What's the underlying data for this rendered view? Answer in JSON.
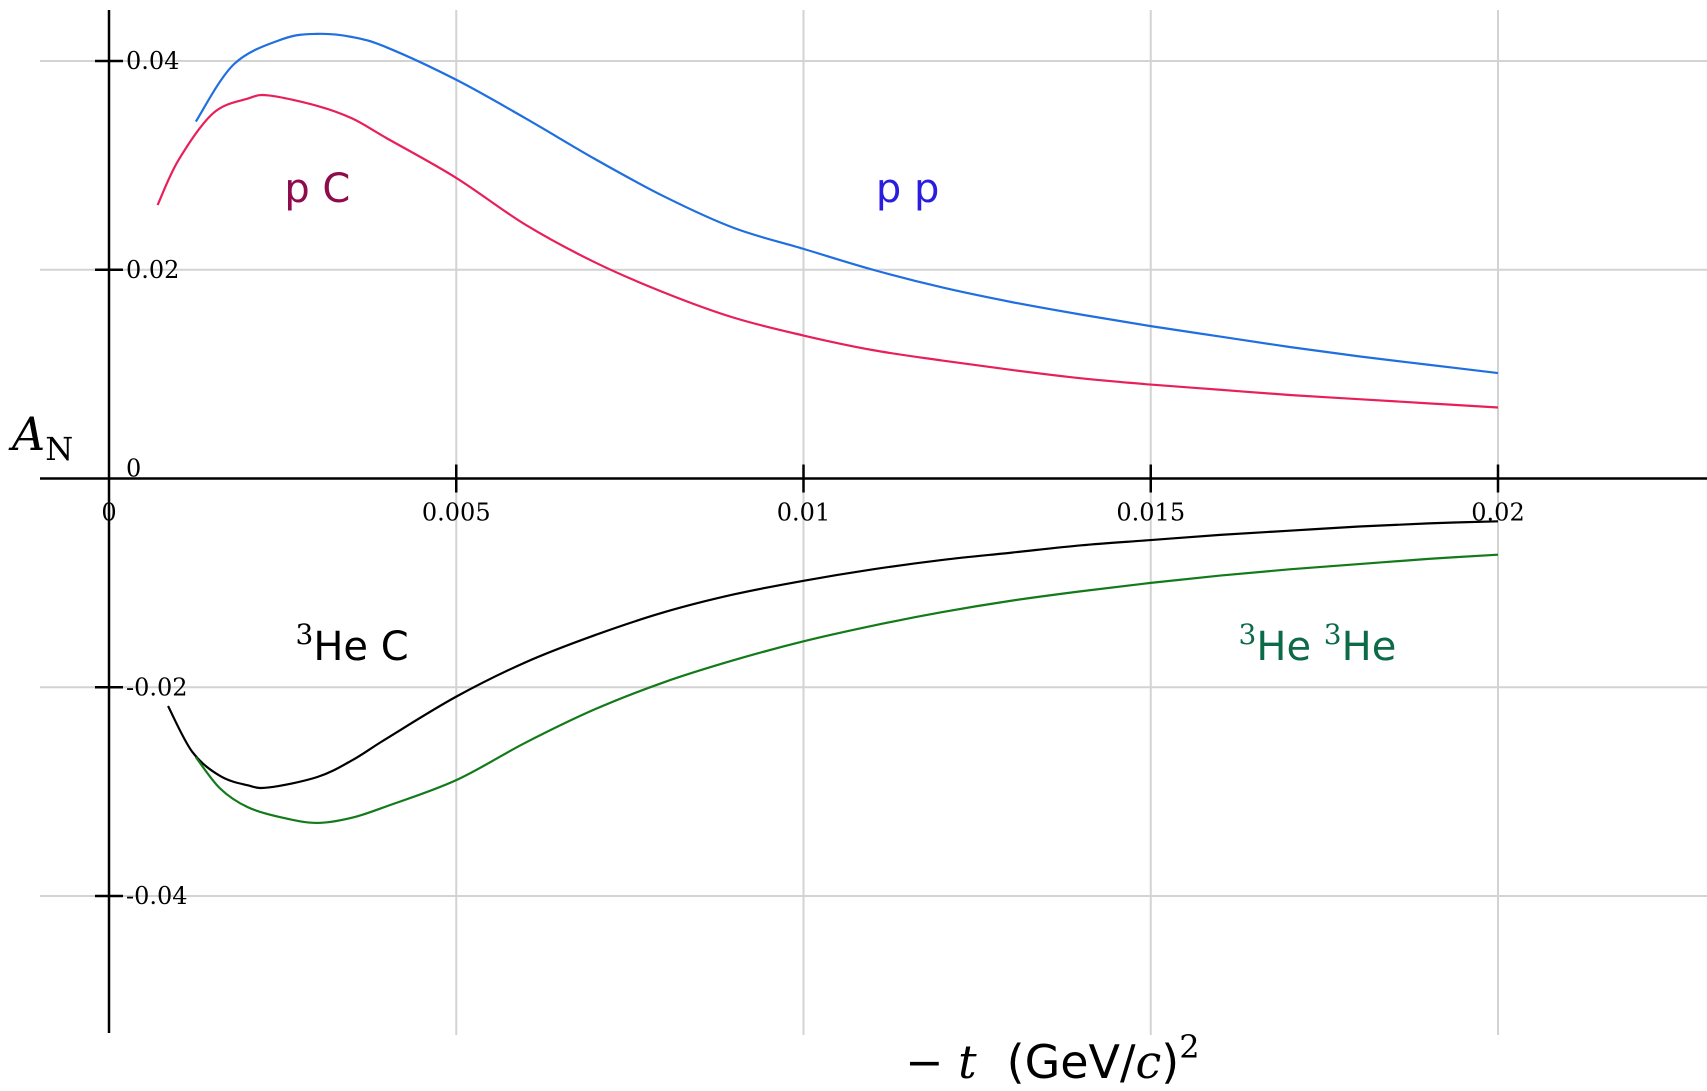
{
  "chart_data": {
    "type": "line",
    "xlabel": "−t  (GeV/c)²",
    "ylabel": "A_N",
    "ylabel_main": "A",
    "ylabel_sub": "N",
    "xlabel_var": "− t",
    "xlabel_unit": "(GeV/",
    "xlabel_unit_c": "c",
    "xlabel_unit_close": ")",
    "xlabel_unit_exp": "2",
    "xlim": [
      -0.001,
      0.021
    ],
    "ylim": [
      -0.0455,
      0.0452
    ],
    "grid": true,
    "x_ticks": [
      {
        "value": 0,
        "label": "0"
      },
      {
        "value": 0.005,
        "label": "0.005"
      },
      {
        "value": 0.01,
        "label": "0.01"
      },
      {
        "value": 0.015,
        "label": "0.015"
      },
      {
        "value": 0.02,
        "label": "0.02"
      }
    ],
    "y_ticks": [
      {
        "value": 0.04,
        "label": "0.04"
      },
      {
        "value": 0.02,
        "label": "0.02"
      },
      {
        "value": 0,
        "label": "0"
      },
      {
        "value": -0.02,
        "label": "-0.02"
      },
      {
        "value": -0.04,
        "label": "-0.04"
      }
    ],
    "series": [
      {
        "name": "p p",
        "color": "#1f6fe0",
        "label_color": "#2a1de0",
        "x": [
          0.00125,
          0.0018,
          0.0025,
          0.003,
          0.0035,
          0.004,
          0.005,
          0.006,
          0.007,
          0.008,
          0.009,
          0.01,
          0.011,
          0.012,
          0.013,
          0.014,
          0.015,
          0.016,
          0.017,
          0.018,
          0.019,
          0.02
        ],
        "y": [
          0.0342,
          0.0397,
          0.0421,
          0.0426,
          0.0423,
          0.0413,
          0.0382,
          0.0345,
          0.0306,
          0.027,
          0.024,
          0.022,
          0.02,
          0.0183,
          0.0169,
          0.0157,
          0.0146,
          0.0136,
          0.0126,
          0.0117,
          0.0109,
          0.0101
        ]
      },
      {
        "name": "p C",
        "color": "#e8205a",
        "label_color": "#8e0b4c",
        "x": [
          0.0007,
          0.001,
          0.0015,
          0.002,
          0.0023,
          0.003,
          0.0035,
          0.004,
          0.005,
          0.006,
          0.007,
          0.008,
          0.009,
          0.01,
          0.011,
          0.012,
          0.013,
          0.014,
          0.015,
          0.016,
          0.017,
          0.018,
          0.019,
          0.02
        ],
        "y": [
          0.0262,
          0.0305,
          0.035,
          0.0364,
          0.0367,
          0.0357,
          0.0345,
          0.0326,
          0.0288,
          0.0243,
          0.0207,
          0.0178,
          0.0154,
          0.0137,
          0.0123,
          0.0113,
          0.0104,
          0.0096,
          0.009,
          0.0085,
          0.008,
          0.0076,
          0.0072,
          0.0068
        ]
      },
      {
        "name": "³He C",
        "color": "#000000",
        "label_color": "#000000",
        "x": [
          0.00085,
          0.0012,
          0.0016,
          0.002,
          0.0023,
          0.003,
          0.0035,
          0.004,
          0.005,
          0.006,
          0.007,
          0.008,
          0.009,
          0.01,
          0.011,
          0.012,
          0.013,
          0.014,
          0.015,
          0.016,
          0.017,
          0.018,
          0.019,
          0.02
        ],
        "y": [
          -0.0218,
          -0.0262,
          -0.0285,
          -0.0294,
          -0.0296,
          -0.0286,
          -0.027,
          -0.0249,
          -0.0209,
          -0.0176,
          -0.015,
          -0.0128,
          -0.0111,
          -0.0098,
          -0.0087,
          -0.0078,
          -0.0071,
          -0.0064,
          -0.0059,
          -0.0054,
          -0.005,
          -0.0046,
          -0.0043,
          -0.0041
        ]
      },
      {
        "name": "³He ³He",
        "color": "#137a1a",
        "label_color": "#0d6a49",
        "x": [
          0.00125,
          0.0016,
          0.002,
          0.0025,
          0.003,
          0.0035,
          0.004,
          0.005,
          0.006,
          0.007,
          0.008,
          0.009,
          0.01,
          0.011,
          0.012,
          0.013,
          0.014,
          0.015,
          0.016,
          0.017,
          0.018,
          0.019,
          0.02
        ],
        "y": [
          -0.0267,
          -0.0297,
          -0.0315,
          -0.0325,
          -0.033,
          -0.0325,
          -0.0314,
          -0.0289,
          -0.0253,
          -0.0221,
          -0.0195,
          -0.0174,
          -0.0156,
          -0.0141,
          -0.0128,
          -0.0117,
          -0.0108,
          -0.01,
          -0.0093,
          -0.0087,
          -0.0082,
          -0.0077,
          -0.0073
        ]
      }
    ],
    "annotations": [
      {
        "series_index": 1,
        "main": "p C",
        "sup": "",
        "x": 0.003,
        "y": 0.0265
      },
      {
        "series_index": 0,
        "main": "p p",
        "sup": "",
        "x": 0.0115,
        "y": 0.0265
      },
      {
        "series_index": 2,
        "main": "He C",
        "sup": "3",
        "x": 0.0035,
        "y": -0.0174
      },
      {
        "series_index": 3,
        "main": "He ",
        "sup": "3",
        "main2": "He",
        "sup2": "3",
        "x": 0.0174,
        "y": -0.0174
      }
    ]
  }
}
